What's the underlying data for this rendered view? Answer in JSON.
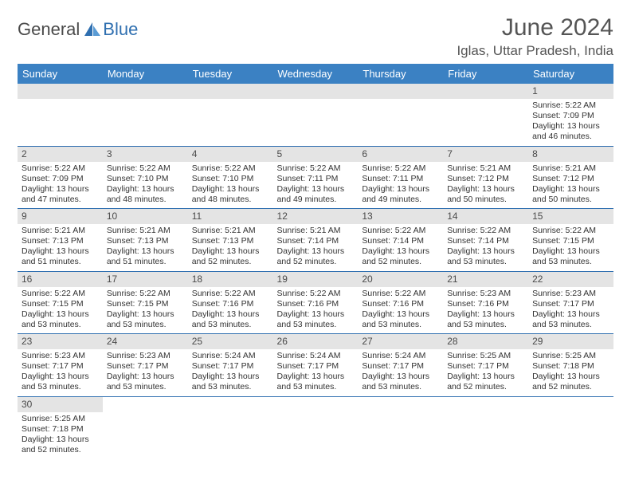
{
  "brand": {
    "part1": "General",
    "part2": "Blue"
  },
  "title": "June 2024",
  "location": "Iglas, Uttar Pradesh, India",
  "colors": {
    "header_bg": "#3b81c3",
    "daynum_bg": "#e4e4e4",
    "rule": "#2f6fb0",
    "logo_accent": "#2f6fb0",
    "text": "#333333"
  },
  "day_headers": [
    "Sunday",
    "Monday",
    "Tuesday",
    "Wednesday",
    "Thursday",
    "Friday",
    "Saturday"
  ],
  "weeks": [
    [
      null,
      null,
      null,
      null,
      null,
      null,
      {
        "n": "1",
        "sr": "Sunrise: 5:22 AM",
        "ss": "Sunset: 7:09 PM",
        "dl": "Daylight: 13 hours and 46 minutes."
      }
    ],
    [
      {
        "n": "2",
        "sr": "Sunrise: 5:22 AM",
        "ss": "Sunset: 7:09 PM",
        "dl": "Daylight: 13 hours and 47 minutes."
      },
      {
        "n": "3",
        "sr": "Sunrise: 5:22 AM",
        "ss": "Sunset: 7:10 PM",
        "dl": "Daylight: 13 hours and 48 minutes."
      },
      {
        "n": "4",
        "sr": "Sunrise: 5:22 AM",
        "ss": "Sunset: 7:10 PM",
        "dl": "Daylight: 13 hours and 48 minutes."
      },
      {
        "n": "5",
        "sr": "Sunrise: 5:22 AM",
        "ss": "Sunset: 7:11 PM",
        "dl": "Daylight: 13 hours and 49 minutes."
      },
      {
        "n": "6",
        "sr": "Sunrise: 5:22 AM",
        "ss": "Sunset: 7:11 PM",
        "dl": "Daylight: 13 hours and 49 minutes."
      },
      {
        "n": "7",
        "sr": "Sunrise: 5:21 AM",
        "ss": "Sunset: 7:12 PM",
        "dl": "Daylight: 13 hours and 50 minutes."
      },
      {
        "n": "8",
        "sr": "Sunrise: 5:21 AM",
        "ss": "Sunset: 7:12 PM",
        "dl": "Daylight: 13 hours and 50 minutes."
      }
    ],
    [
      {
        "n": "9",
        "sr": "Sunrise: 5:21 AM",
        "ss": "Sunset: 7:13 PM",
        "dl": "Daylight: 13 hours and 51 minutes."
      },
      {
        "n": "10",
        "sr": "Sunrise: 5:21 AM",
        "ss": "Sunset: 7:13 PM",
        "dl": "Daylight: 13 hours and 51 minutes."
      },
      {
        "n": "11",
        "sr": "Sunrise: 5:21 AM",
        "ss": "Sunset: 7:13 PM",
        "dl": "Daylight: 13 hours and 52 minutes."
      },
      {
        "n": "12",
        "sr": "Sunrise: 5:21 AM",
        "ss": "Sunset: 7:14 PM",
        "dl": "Daylight: 13 hours and 52 minutes."
      },
      {
        "n": "13",
        "sr": "Sunrise: 5:22 AM",
        "ss": "Sunset: 7:14 PM",
        "dl": "Daylight: 13 hours and 52 minutes."
      },
      {
        "n": "14",
        "sr": "Sunrise: 5:22 AM",
        "ss": "Sunset: 7:14 PM",
        "dl": "Daylight: 13 hours and 53 minutes."
      },
      {
        "n": "15",
        "sr": "Sunrise: 5:22 AM",
        "ss": "Sunset: 7:15 PM",
        "dl": "Daylight: 13 hours and 53 minutes."
      }
    ],
    [
      {
        "n": "16",
        "sr": "Sunrise: 5:22 AM",
        "ss": "Sunset: 7:15 PM",
        "dl": "Daylight: 13 hours and 53 minutes."
      },
      {
        "n": "17",
        "sr": "Sunrise: 5:22 AM",
        "ss": "Sunset: 7:15 PM",
        "dl": "Daylight: 13 hours and 53 minutes."
      },
      {
        "n": "18",
        "sr": "Sunrise: 5:22 AM",
        "ss": "Sunset: 7:16 PM",
        "dl": "Daylight: 13 hours and 53 minutes."
      },
      {
        "n": "19",
        "sr": "Sunrise: 5:22 AM",
        "ss": "Sunset: 7:16 PM",
        "dl": "Daylight: 13 hours and 53 minutes."
      },
      {
        "n": "20",
        "sr": "Sunrise: 5:22 AM",
        "ss": "Sunset: 7:16 PM",
        "dl": "Daylight: 13 hours and 53 minutes."
      },
      {
        "n": "21",
        "sr": "Sunrise: 5:23 AM",
        "ss": "Sunset: 7:16 PM",
        "dl": "Daylight: 13 hours and 53 minutes."
      },
      {
        "n": "22",
        "sr": "Sunrise: 5:23 AM",
        "ss": "Sunset: 7:17 PM",
        "dl": "Daylight: 13 hours and 53 minutes."
      }
    ],
    [
      {
        "n": "23",
        "sr": "Sunrise: 5:23 AM",
        "ss": "Sunset: 7:17 PM",
        "dl": "Daylight: 13 hours and 53 minutes."
      },
      {
        "n": "24",
        "sr": "Sunrise: 5:23 AM",
        "ss": "Sunset: 7:17 PM",
        "dl": "Daylight: 13 hours and 53 minutes."
      },
      {
        "n": "25",
        "sr": "Sunrise: 5:24 AM",
        "ss": "Sunset: 7:17 PM",
        "dl": "Daylight: 13 hours and 53 minutes."
      },
      {
        "n": "26",
        "sr": "Sunrise: 5:24 AM",
        "ss": "Sunset: 7:17 PM",
        "dl": "Daylight: 13 hours and 53 minutes."
      },
      {
        "n": "27",
        "sr": "Sunrise: 5:24 AM",
        "ss": "Sunset: 7:17 PM",
        "dl": "Daylight: 13 hours and 53 minutes."
      },
      {
        "n": "28",
        "sr": "Sunrise: 5:25 AM",
        "ss": "Sunset: 7:17 PM",
        "dl": "Daylight: 13 hours and 52 minutes."
      },
      {
        "n": "29",
        "sr": "Sunrise: 5:25 AM",
        "ss": "Sunset: 7:18 PM",
        "dl": "Daylight: 13 hours and 52 minutes."
      }
    ],
    [
      {
        "n": "30",
        "sr": "Sunrise: 5:25 AM",
        "ss": "Sunset: 7:18 PM",
        "dl": "Daylight: 13 hours and 52 minutes."
      },
      null,
      null,
      null,
      null,
      null,
      null
    ]
  ]
}
